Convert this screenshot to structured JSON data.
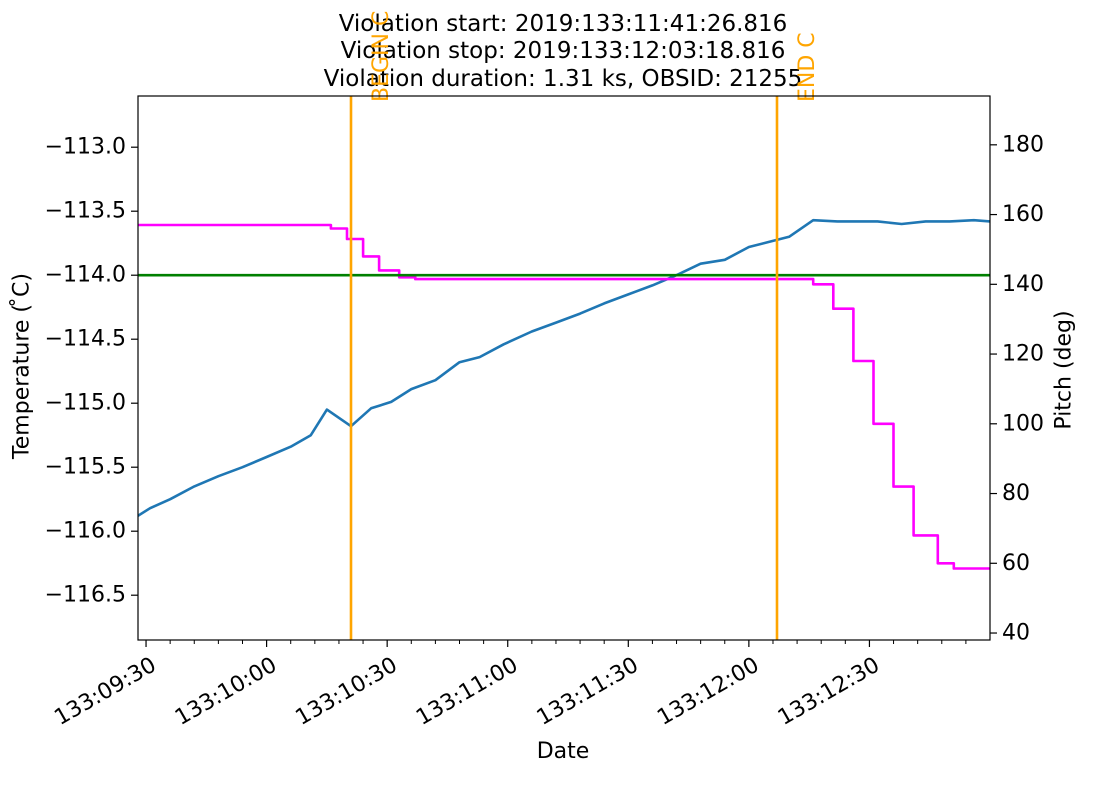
{
  "chart_data": {
    "type": "line",
    "title_lines": [
      "Violation start: 2019:133:11:41:26.816",
      "Violation stop: 2019:133:12:03:18.816",
      "Violation duration: 1.31 ks, OBSID: 21255"
    ],
    "xlabel": "Date",
    "ylabel_left": "Temperature ($^\\circ$C)",
    "ylabel_left_display": "Temperature ( ̊C)",
    "ylabel_right": "Pitch (deg)",
    "x_unit": "seconds after 133:09:30",
    "xlim": [
      -2,
      210
    ],
    "ylim_left": [
      -116.85,
      -112.6
    ],
    "ylim_right": [
      38,
      194
    ],
    "grid": false,
    "legend": "none",
    "x_ticks": [
      {
        "x": 0,
        "label": "133:09:30"
      },
      {
        "x": 30,
        "label": "133:10:00"
      },
      {
        "x": 60,
        "label": "133:10:30"
      },
      {
        "x": 90,
        "label": "133:11:00"
      },
      {
        "x": 120,
        "label": "133:11:30"
      },
      {
        "x": 150,
        "label": "133:12:00"
      },
      {
        "x": 180,
        "label": "133:12:30"
      }
    ],
    "x_minor_ticks": [
      6,
      12,
      18,
      24,
      36,
      42,
      48,
      54,
      66,
      72,
      78,
      84,
      96,
      102,
      108,
      114,
      126,
      132,
      138,
      144,
      156,
      162,
      168,
      174,
      186,
      192,
      198,
      204
    ],
    "y_left_ticks": [
      -113.0,
      -113.5,
      -114.0,
      -114.5,
      -115.0,
      -115.5,
      -116.0,
      -116.5
    ],
    "y_left_tick_labels": [
      "−113.0",
      "−113.5",
      "−114.0",
      "−114.5",
      "−115.0",
      "−115.5",
      "−116.0",
      "−116.5"
    ],
    "y_right_ticks": [
      40,
      60,
      80,
      100,
      120,
      140,
      160,
      180
    ],
    "y_right_tick_labels": [
      "40",
      "60",
      "80",
      "100",
      "120",
      "140",
      "160",
      "180"
    ],
    "series": [
      {
        "axis": "left",
        "color": "#1f77b4",
        "x": [
          -2,
          1,
          6,
          12,
          18,
          24,
          30,
          36,
          41,
          45,
          51,
          56,
          61,
          66,
          72,
          78,
          83,
          89,
          96,
          102,
          108,
          114,
          120,
          126,
          132,
          138,
          144,
          150,
          155,
          160,
          166,
          172,
          177,
          182,
          188,
          194,
          200,
          206,
          210
        ],
        "y": [
          -115.88,
          -115.82,
          -115.75,
          -115.65,
          -115.57,
          -115.5,
          -115.42,
          -115.34,
          -115.25,
          -115.05,
          -115.18,
          -115.04,
          -114.99,
          -114.89,
          -114.82,
          -114.68,
          -114.64,
          -114.54,
          -114.44,
          -114.37,
          -114.3,
          -114.22,
          -114.15,
          -114.08,
          -114.0,
          -113.91,
          -113.88,
          -113.78,
          -113.74,
          -113.7,
          -113.57,
          -113.58,
          -113.58,
          -113.58,
          -113.6,
          -113.58,
          -113.58,
          -113.57,
          -113.58
        ]
      },
      {
        "axis": "right",
        "color": "#ff00ff",
        "step": "post",
        "x": [
          -2,
          41,
          46,
          50,
          54,
          58,
          63,
          67,
          160,
          161,
          166,
          171,
          176,
          181,
          186,
          191,
          197,
          201,
          206,
          210
        ],
        "y": [
          157,
          157,
          156,
          153,
          148,
          144,
          142,
          141.5,
          141.5,
          141.5,
          140,
          133,
          118,
          100,
          82,
          68,
          60,
          58.5,
          58.5,
          58.5
        ]
      }
    ],
    "hlines": [
      {
        "axis": "left",
        "y": -114.0,
        "color": "#008000"
      }
    ],
    "vlines": [
      {
        "x": 51,
        "label": "BEGIN",
        "visible_label": "BEGIN C",
        "color": "#ffa500"
      },
      {
        "x": 157,
        "label": "END",
        "visible_label": "END C",
        "color": "#ffa500"
      }
    ]
  }
}
